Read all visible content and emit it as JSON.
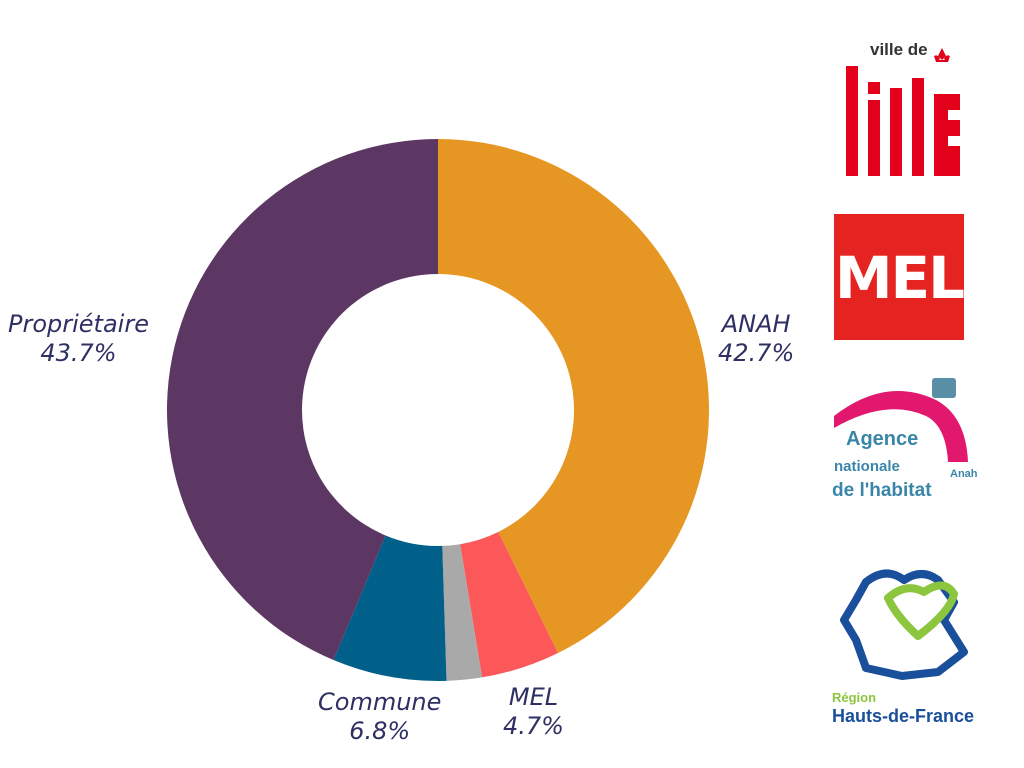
{
  "chart_data": {
    "type": "donut",
    "slices": [
      {
        "label": "ANAH",
        "value": 42.7,
        "value_label": "42.7%",
        "color": "#e69623"
      },
      {
        "label": "MEL",
        "value": 4.7,
        "value_label": "4.7%",
        "color": "#fc585a"
      },
      {
        "label": "",
        "value": 2.1,
        "value_label": "",
        "color": "#a9a9a9"
      },
      {
        "label": "Commune",
        "value": 6.8,
        "value_label": "6.8%",
        "color": "#006089"
      },
      {
        "label": "Propriétaire",
        "value": 43.7,
        "value_label": "43.7%",
        "color": "#5d3763"
      }
    ],
    "start_angle": "top",
    "direction": "clockwise",
    "legend": "none"
  },
  "logos": {
    "lille": {
      "text": "ville de",
      "icon": "fleur-de-lys-icon",
      "color": "#e2001a"
    },
    "mel": {
      "text": "MEL",
      "color": "#e52421"
    },
    "anah": {
      "line1": "Agence",
      "line2": "nationale",
      "line3": "de l'habitat",
      "abbr": "Anah",
      "colors": [
        "#e2186f",
        "#3a86a8",
        "#5a8fa8"
      ]
    },
    "region": {
      "label": "Région",
      "name": "Hauts-de-France",
      "colors": [
        "#1a4f9c",
        "#8cc63f"
      ]
    }
  }
}
